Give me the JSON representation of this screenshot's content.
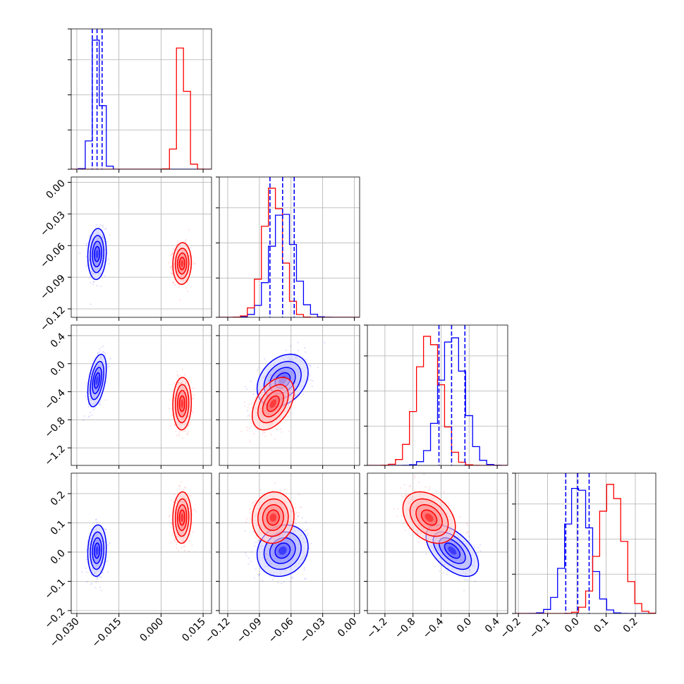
{
  "chart_data": {
    "type": "corner",
    "params": [
      {
        "lim": [
          -0.032,
          0.018
        ],
        "ticks": [
          -0.03,
          -0.015,
          0.0,
          0.015
        ],
        "tick_labels": [
          "−0.030",
          "−0.015",
          "0.000",
          "0.015"
        ]
      },
      {
        "lim": [
          -0.128,
          0.005
        ],
        "ticks": [
          -0.12,
          -0.09,
          -0.06,
          -0.03,
          0.0
        ],
        "tick_labels": [
          "−0.12",
          "−0.09",
          "−0.06",
          "−0.03",
          "0.00"
        ]
      },
      {
        "lim": [
          -1.45,
          0.55
        ],
        "ticks": [
          -1.2,
          -0.8,
          -0.4,
          0.0,
          0.4
        ],
        "tick_labels": [
          "−1.2",
          "−0.8",
          "−0.4",
          "0.0",
          "0.4"
        ]
      },
      {
        "lim": [
          -0.21,
          0.27
        ],
        "ticks": [
          -0.2,
          -0.1,
          0.0,
          0.1,
          0.2
        ],
        "tick_labels": [
          "−0.2",
          "−0.1",
          "0.0",
          "0.1",
          "0.2"
        ]
      }
    ],
    "series": [
      {
        "color": "#0000ff",
        "mean": [
          -0.0228,
          -0.068,
          -0.24,
          0.005
        ],
        "sd": [
          0.0015,
          0.011,
          0.17,
          0.04
        ],
        "corr": {
          "0-1": 0.1,
          "0-2": 0.45,
          "0-3": 0.1,
          "1-2": 0.3,
          "1-3": 0.15,
          "2-3": -0.55
        },
        "quantile_lines": [
          [
            -0.0245,
            -0.0228,
            -0.021
          ],
          [
            -0.08,
            -0.068,
            -0.057
          ],
          [
            -0.43,
            -0.25,
            -0.06
          ],
          [
            -0.038,
            0.003,
            0.042
          ]
        ]
      },
      {
        "color": "#ff0000",
        "mean": [
          0.0075,
          -0.077,
          -0.57,
          0.118
        ],
        "sd": [
          0.0015,
          0.009,
          0.17,
          0.04
        ],
        "corr": {
          "0-1": 0.05,
          "0-2": 0.05,
          "0-3": 0.05,
          "1-2": 0.45,
          "1-3": 0.05,
          "2-3": -0.35
        }
      }
    ]
  }
}
